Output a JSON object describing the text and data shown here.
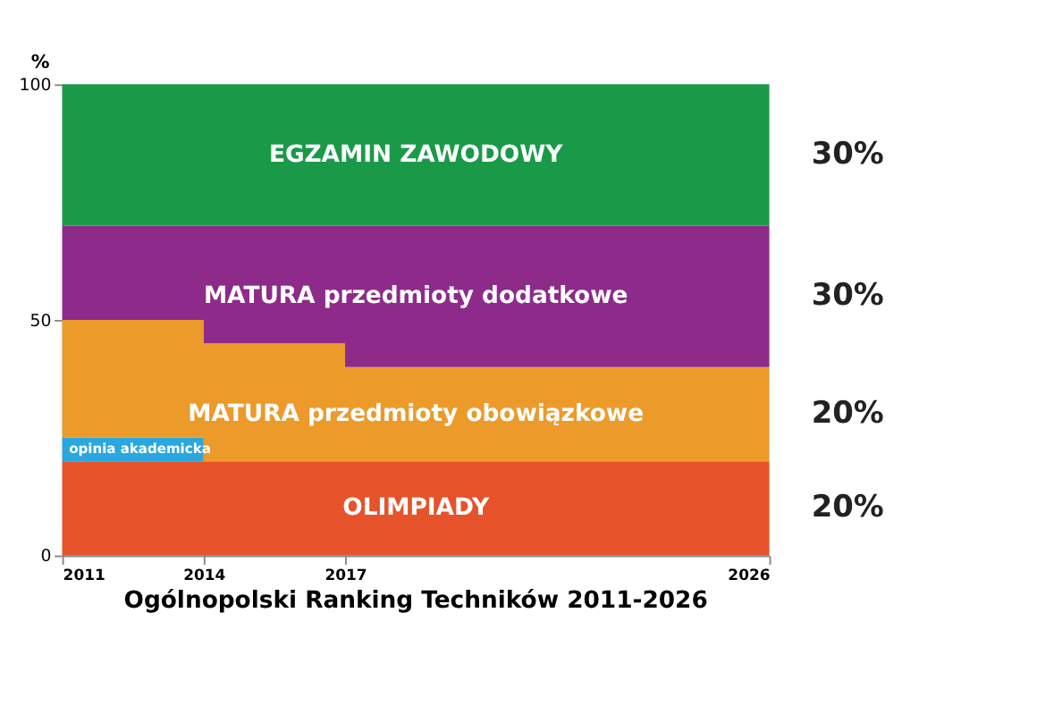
{
  "chart_data": {
    "type": "area",
    "title": "Ogólnopolski Ranking Techników 2011-2026",
    "ylabel": "%",
    "x": [
      2011,
      2014,
      2017,
      2026
    ],
    "stacked": true,
    "series": [
      {
        "name": "OLIMPIADY",
        "color": "#e6532a",
        "values": [
          20,
          20,
          20,
          20
        ],
        "value_labels": [
          null,
          null,
          null,
          "20%"
        ]
      },
      {
        "name": "opinia akademicka",
        "color": "#29a7df",
        "values": [
          5,
          0,
          0,
          0
        ]
      },
      {
        "name": "MATURA przedmioty obowiązkowe",
        "color": "#ec9a2a",
        "values": [
          25,
          25,
          20,
          20
        ],
        "value_labels": [
          null,
          null,
          null,
          "20%"
        ]
      },
      {
        "name": "MATURA przedmioty dodatkowe",
        "color": "#8e2a8a",
        "values": [
          20,
          25,
          30,
          30
        ],
        "value_labels": [
          null,
          null,
          null,
          "30%"
        ]
      },
      {
        "name": "EGZAMIN ZAWODOWY",
        "color": "#1a9a48",
        "values": [
          30,
          30,
          30,
          30
        ],
        "value_labels": [
          null,
          null,
          null,
          "30%"
        ]
      }
    ],
    "xlim": [
      2011,
      2026
    ],
    "xticks": [
      2011,
      2014,
      2017,
      2026
    ],
    "ylim": [
      0,
      100
    ],
    "yticks": [
      0,
      50,
      100
    ],
    "grid": false,
    "legend": false
  }
}
